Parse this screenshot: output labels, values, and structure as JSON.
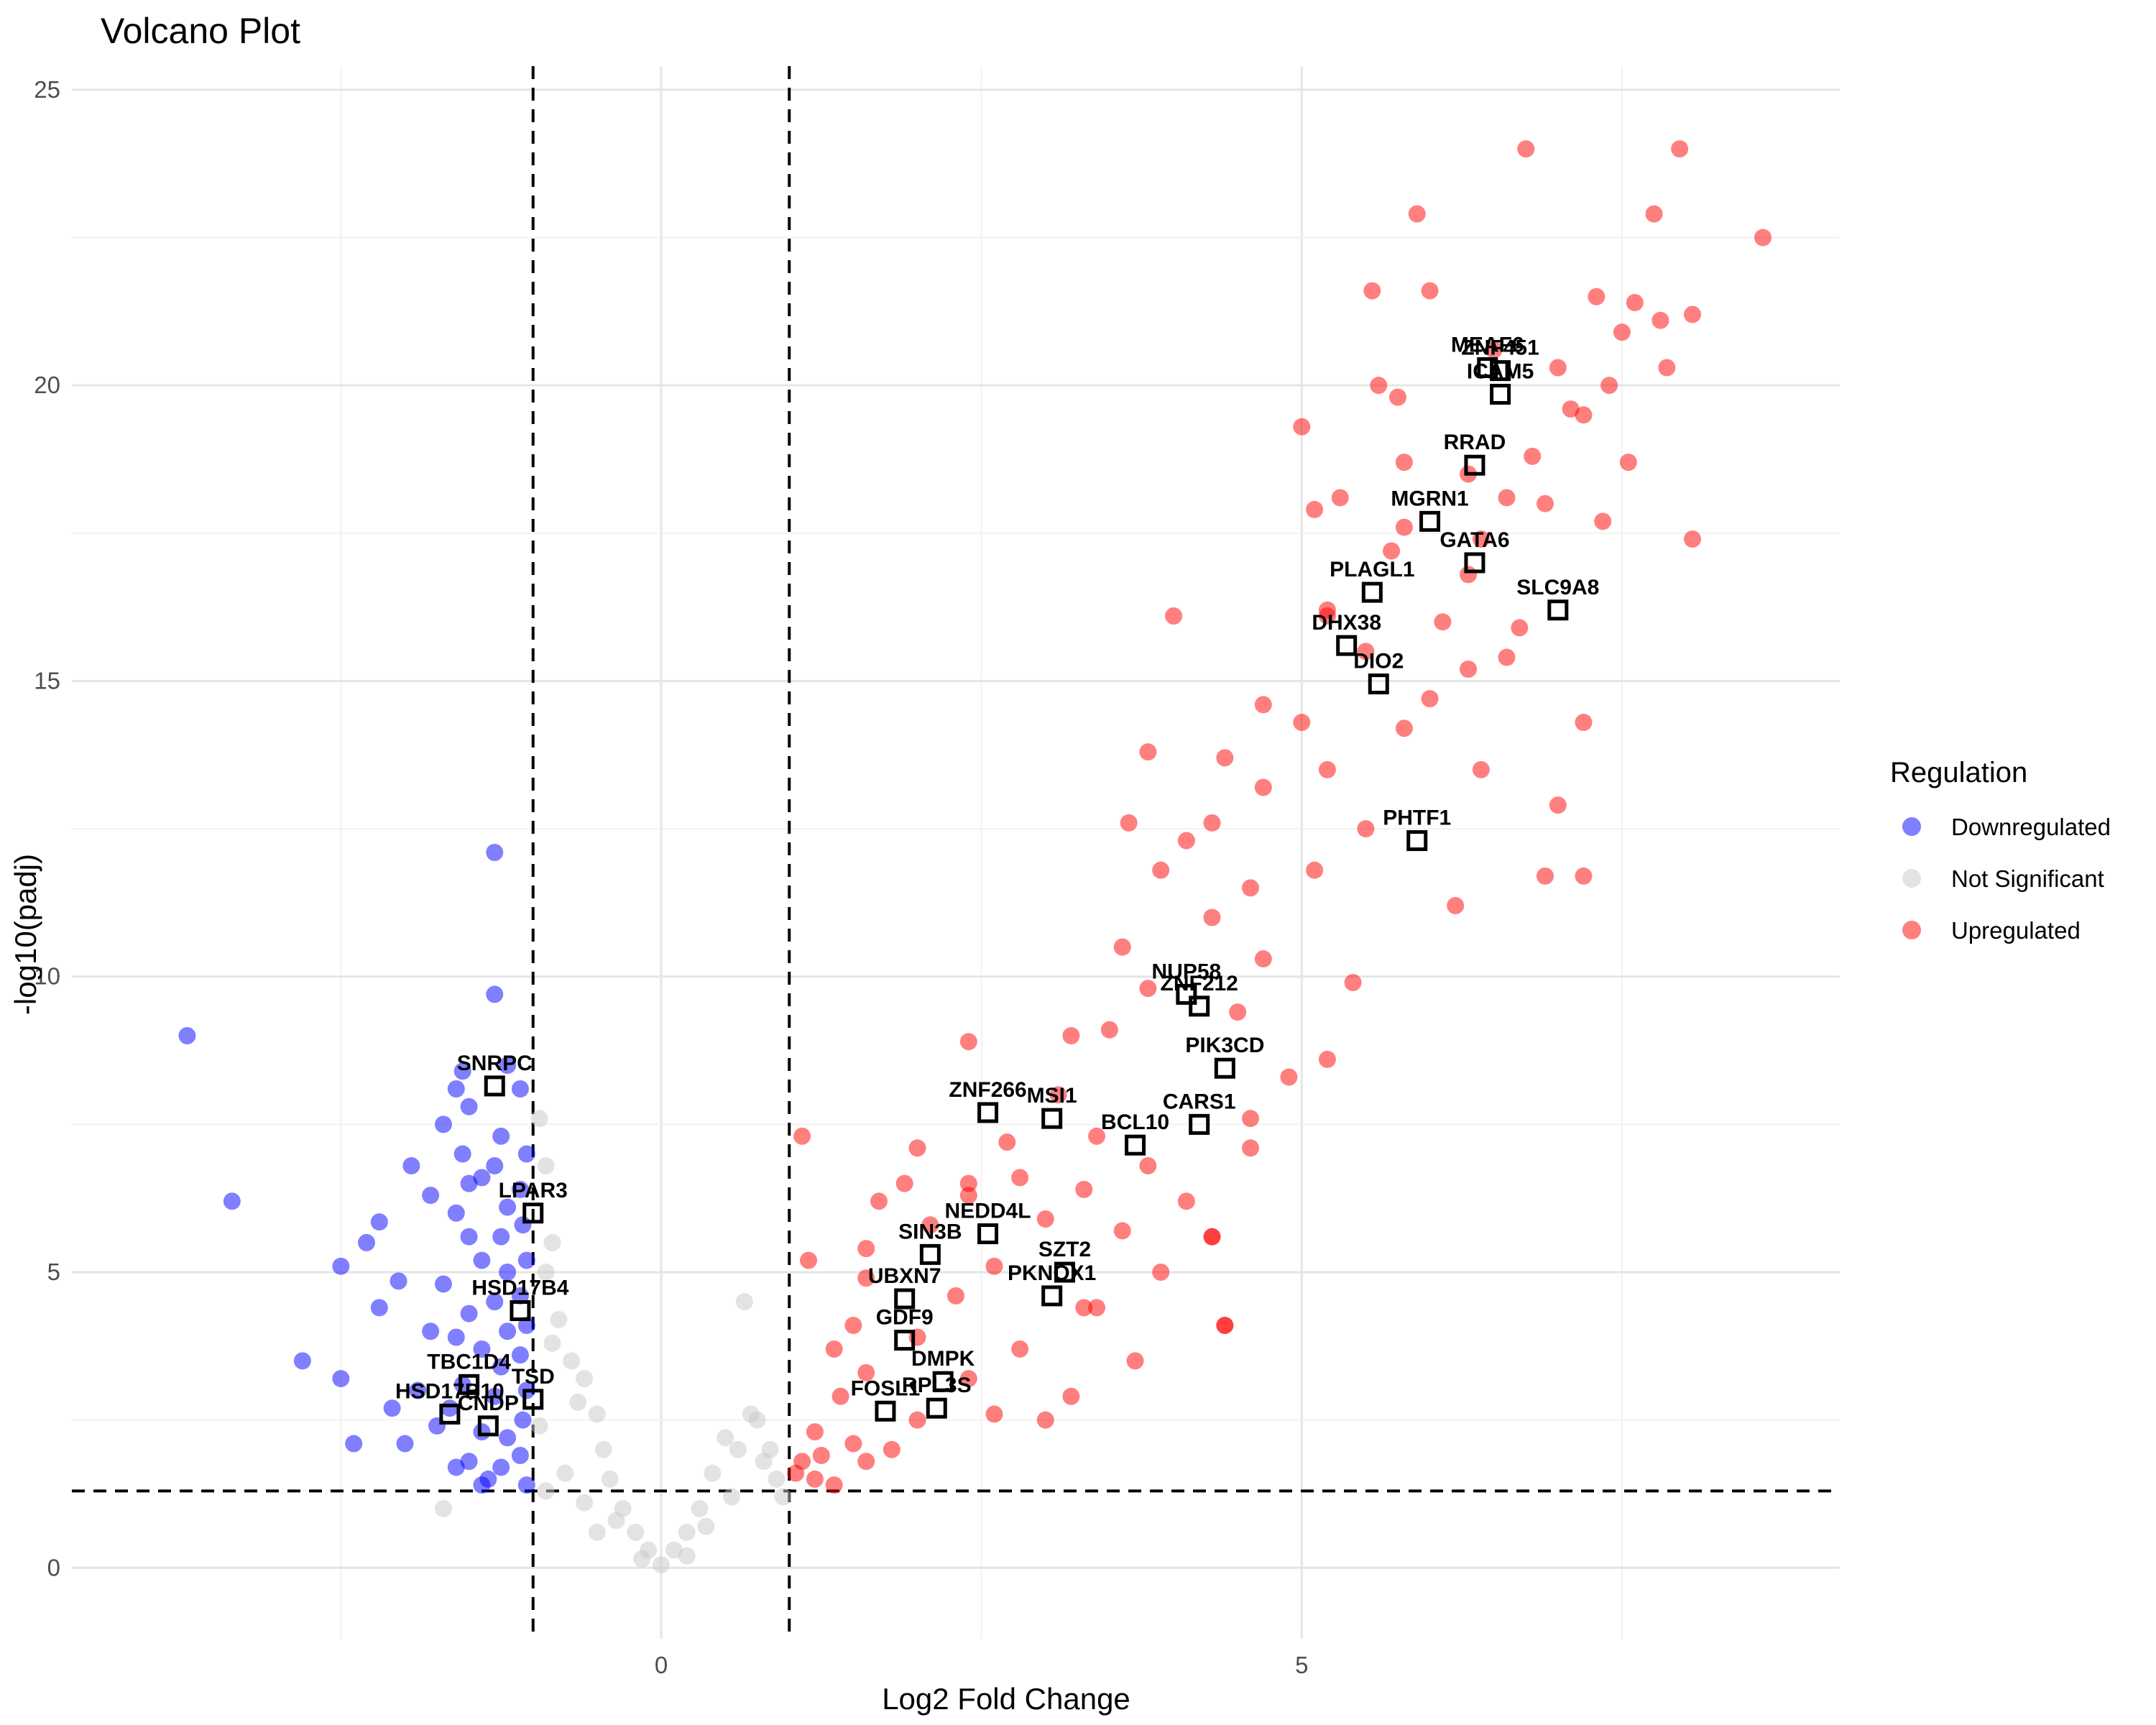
{
  "chart_data": {
    "type": "scatter",
    "title": "Volcano Plot",
    "xlabel": "Log2 Fold Change",
    "ylabel": "-log10(padj)",
    "xlim": [
      -4.6,
      9.2
    ],
    "ylim": [
      -1.2,
      25.4
    ],
    "x_ticks": [
      0,
      5
    ],
    "y_ticks": [
      0,
      5,
      10,
      15,
      20,
      25
    ],
    "grid": true,
    "legend_position": "right",
    "thresholds": {
      "log2fc": [
        -1,
        1
      ],
      "neg_log10_padj": 1.3
    },
    "legend": {
      "title": "Regulation"
    },
    "series": [
      {
        "name": "Downregulated",
        "color": "#0000ff",
        "points": [
          [
            -3.7,
            9.0
          ],
          [
            -3.35,
            6.2
          ],
          [
            -2.5,
            5.1
          ],
          [
            -2.05,
            4.85
          ],
          [
            -2.2,
            5.85
          ],
          [
            -2.3,
            5.5
          ],
          [
            -2.2,
            4.4
          ],
          [
            -2.8,
            3.5
          ],
          [
            -2.5,
            3.2
          ],
          [
            -2.4,
            2.1
          ],
          [
            -2.1,
            2.7
          ],
          [
            -2.0,
            2.1
          ],
          [
            -1.6,
            8.1
          ],
          [
            -1.5,
            7.8
          ],
          [
            -1.55,
            8.4
          ],
          [
            -1.55,
            7.0
          ],
          [
            -1.7,
            7.5
          ],
          [
            -1.5,
            6.5
          ],
          [
            -1.4,
            6.6
          ],
          [
            -1.6,
            6.0
          ],
          [
            -1.5,
            5.6
          ],
          [
            -1.4,
            5.2
          ],
          [
            -1.5,
            4.3
          ],
          [
            -1.6,
            3.9
          ],
          [
            -1.4,
            3.7
          ],
          [
            -1.55,
            3.1
          ],
          [
            -1.65,
            2.7
          ],
          [
            -1.4,
            2.3
          ],
          [
            -1.5,
            1.8
          ],
          [
            -1.35,
            1.5
          ],
          [
            -1.3,
            9.7
          ],
          [
            -1.2,
            8.5
          ],
          [
            -1.25,
            7.3
          ],
          [
            -1.3,
            6.8
          ],
          [
            -1.2,
            6.1
          ],
          [
            -1.25,
            5.6
          ],
          [
            -1.2,
            5.0
          ],
          [
            -1.3,
            4.5
          ],
          [
            -1.2,
            4.0
          ],
          [
            -1.25,
            3.4
          ],
          [
            -1.3,
            2.9
          ],
          [
            -1.2,
            2.2
          ],
          [
            -1.25,
            1.7
          ],
          [
            -1.1,
            8.1
          ],
          [
            -1.05,
            7.0
          ],
          [
            -1.1,
            6.4
          ],
          [
            -1.08,
            5.8
          ],
          [
            -1.05,
            5.2
          ],
          [
            -1.1,
            4.6
          ],
          [
            -1.05,
            4.1
          ],
          [
            -1.1,
            3.6
          ],
          [
            -1.05,
            3.0
          ],
          [
            -1.08,
            2.5
          ],
          [
            -1.1,
            1.9
          ],
          [
            -1.05,
            1.4
          ],
          [
            -1.4,
            1.4
          ],
          [
            -1.6,
            1.7
          ],
          [
            -1.75,
            2.4
          ],
          [
            -1.9,
            3.0
          ],
          [
            -1.8,
            4.0
          ],
          [
            -1.7,
            4.8
          ],
          [
            -1.8,
            6.3
          ],
          [
            -1.95,
            6.8
          ],
          [
            -1.3,
            12.1
          ]
        ]
      },
      {
        "name": "Not Significant",
        "color": "#c8c8c8",
        "points": [
          [
            -1.7,
            1.0
          ],
          [
            -0.95,
            7.6
          ],
          [
            -0.9,
            6.8
          ],
          [
            -0.85,
            5.5
          ],
          [
            -0.9,
            5.0
          ],
          [
            -0.8,
            4.2
          ],
          [
            -0.7,
            3.5
          ],
          [
            -0.6,
            3.2
          ],
          [
            -0.5,
            2.6
          ],
          [
            -0.45,
            2.0
          ],
          [
            -0.4,
            1.5
          ],
          [
            -0.3,
            1.0
          ],
          [
            -0.2,
            0.6
          ],
          [
            -0.1,
            0.3
          ],
          [
            0.0,
            0.05
          ],
          [
            0.1,
            0.3
          ],
          [
            0.2,
            0.6
          ],
          [
            0.3,
            1.0
          ],
          [
            0.4,
            1.6
          ],
          [
            0.5,
            2.2
          ],
          [
            0.6,
            2.0
          ],
          [
            0.7,
            2.6
          ],
          [
            0.75,
            2.5
          ],
          [
            0.8,
            1.8
          ],
          [
            0.9,
            1.5
          ],
          [
            0.95,
            1.2
          ],
          [
            0.65,
            4.5
          ],
          [
            -0.85,
            3.8
          ],
          [
            -0.95,
            2.4
          ],
          [
            -0.75,
            1.6
          ],
          [
            -0.6,
            1.1
          ],
          [
            -0.35,
            0.8
          ],
          [
            0.35,
            0.7
          ],
          [
            0.55,
            1.2
          ],
          [
            0.85,
            2.0
          ],
          [
            -0.65,
            2.8
          ],
          [
            -0.9,
            1.3
          ],
          [
            -0.5,
            0.6
          ],
          [
            0.2,
            0.2
          ],
          [
            -0.15,
            0.15
          ]
        ]
      },
      {
        "name": "Upregulated",
        "color": "#ff0000",
        "points": [
          [
            6.75,
            24.0
          ],
          [
            7.95,
            24.0
          ],
          [
            5.9,
            22.9
          ],
          [
            7.75,
            22.9
          ],
          [
            8.6,
            22.5
          ],
          [
            7.3,
            21.5
          ],
          [
            5.55,
            21.6
          ],
          [
            6.0,
            21.6
          ],
          [
            7.6,
            21.4
          ],
          [
            7.8,
            21.1
          ],
          [
            8.05,
            21.2
          ],
          [
            7.5,
            20.9
          ],
          [
            7.0,
            20.3
          ],
          [
            7.85,
            20.3
          ],
          [
            7.4,
            20.0
          ],
          [
            6.5,
            20.6
          ],
          [
            5.6,
            20.0
          ],
          [
            5.75,
            19.8
          ],
          [
            7.2,
            19.5
          ],
          [
            5.0,
            19.3
          ],
          [
            7.55,
            18.7
          ],
          [
            5.8,
            18.7
          ],
          [
            6.8,
            18.8
          ],
          [
            6.3,
            18.5
          ],
          [
            5.3,
            18.1
          ],
          [
            6.6,
            18.1
          ],
          [
            6.9,
            18.0
          ],
          [
            7.35,
            17.7
          ],
          [
            5.1,
            17.9
          ],
          [
            8.05,
            17.4
          ],
          [
            6.4,
            17.4
          ],
          [
            5.7,
            17.2
          ],
          [
            4.0,
            16.1
          ],
          [
            5.2,
            16.2
          ],
          [
            6.1,
            16.0
          ],
          [
            6.7,
            15.9
          ],
          [
            5.5,
            15.5
          ],
          [
            6.3,
            15.2
          ],
          [
            6.6,
            15.4
          ],
          [
            6.0,
            14.7
          ],
          [
            5.8,
            14.2
          ],
          [
            4.7,
            14.6
          ],
          [
            7.2,
            14.3
          ],
          [
            5.0,
            14.3
          ],
          [
            4.4,
            13.7
          ],
          [
            3.8,
            13.8
          ],
          [
            6.4,
            13.5
          ],
          [
            5.2,
            13.5
          ],
          [
            4.7,
            13.2
          ],
          [
            3.65,
            12.6
          ],
          [
            4.3,
            12.6
          ],
          [
            7.0,
            12.9
          ],
          [
            5.5,
            12.5
          ],
          [
            4.1,
            12.3
          ],
          [
            4.6,
            11.5
          ],
          [
            3.9,
            11.8
          ],
          [
            5.1,
            11.8
          ],
          [
            6.2,
            11.2
          ],
          [
            7.2,
            11.7
          ],
          [
            4.3,
            11.0
          ],
          [
            3.6,
            10.5
          ],
          [
            4.7,
            10.3
          ],
          [
            3.8,
            9.8
          ],
          [
            5.4,
            9.9
          ],
          [
            4.5,
            9.4
          ],
          [
            3.5,
            9.1
          ],
          [
            3.2,
            9.0
          ],
          [
            2.4,
            8.9
          ],
          [
            4.9,
            8.3
          ],
          [
            5.2,
            8.6
          ],
          [
            3.1,
            8.0
          ],
          [
            4.6,
            7.6
          ],
          [
            3.4,
            7.3
          ],
          [
            2.7,
            7.2
          ],
          [
            2.0,
            7.1
          ],
          [
            3.8,
            6.8
          ],
          [
            4.6,
            7.1
          ],
          [
            1.9,
            6.5
          ],
          [
            2.4,
            6.3
          ],
          [
            2.8,
            6.6
          ],
          [
            3.3,
            6.4
          ],
          [
            4.1,
            6.2
          ],
          [
            1.7,
            6.2
          ],
          [
            3.0,
            5.9
          ],
          [
            2.1,
            5.8
          ],
          [
            3.6,
            5.7
          ],
          [
            4.3,
            5.6
          ],
          [
            1.6,
            5.4
          ],
          [
            2.6,
            5.1
          ],
          [
            3.9,
            5.0
          ],
          [
            1.15,
            5.2
          ],
          [
            1.6,
            4.9
          ],
          [
            2.3,
            4.6
          ],
          [
            3.3,
            4.4
          ],
          [
            4.4,
            4.1
          ],
          [
            1.5,
            4.1
          ],
          [
            2.0,
            3.9
          ],
          [
            2.8,
            3.7
          ],
          [
            3.7,
            3.5
          ],
          [
            1.35,
            3.7
          ],
          [
            1.6,
            3.3
          ],
          [
            2.4,
            3.2
          ],
          [
            3.2,
            2.9
          ],
          [
            1.4,
            2.9
          ],
          [
            2.0,
            2.5
          ],
          [
            2.6,
            2.6
          ],
          [
            3.0,
            2.5
          ],
          [
            1.2,
            2.3
          ],
          [
            1.5,
            2.1
          ],
          [
            1.25,
            1.9
          ],
          [
            1.1,
            1.8
          ],
          [
            1.05,
            1.6
          ],
          [
            1.2,
            1.5
          ],
          [
            1.35,
            1.4
          ],
          [
            1.6,
            1.8
          ],
          [
            1.8,
            2.0
          ],
          [
            1.1,
            7.3
          ],
          [
            7.1,
            19.6
          ],
          [
            6.9,
            11.7
          ],
          [
            4.3,
            5.6
          ],
          [
            3.4,
            4.4
          ],
          [
            4.4,
            4.1
          ],
          [
            2.4,
            6.5
          ],
          [
            5.2,
            16.1
          ],
          [
            6.3,
            16.8
          ],
          [
            5.8,
            17.6
          ]
        ]
      }
    ],
    "labeled_genes": [
      {
        "label": "ZNF451",
        "x": 6.55,
        "y": 20.25
      },
      {
        "label": "MEAF6",
        "x": 6.45,
        "y": 20.3
      },
      {
        "label": "ICAM5",
        "x": 6.55,
        "y": 19.85
      },
      {
        "label": "RRAD",
        "x": 6.35,
        "y": 18.65
      },
      {
        "label": "MGRN1",
        "x": 6.0,
        "y": 17.7
      },
      {
        "label": "GATA6",
        "x": 6.35,
        "y": 17.0
      },
      {
        "label": "PLAGL1",
        "x": 5.55,
        "y": 16.5
      },
      {
        "label": "SLC9A8",
        "x": 7.0,
        "y": 16.2
      },
      {
        "label": "DHX38",
        "x": 5.35,
        "y": 15.6
      },
      {
        "label": "DIO2",
        "x": 5.6,
        "y": 14.95
      },
      {
        "label": "PHTF1",
        "x": 5.9,
        "y": 12.3
      },
      {
        "label": "NUP58",
        "x": 4.1,
        "y": 9.7
      },
      {
        "label": "ZNF212",
        "x": 4.2,
        "y": 9.5
      },
      {
        "label": "PIK3CD",
        "x": 4.4,
        "y": 8.45
      },
      {
        "label": "ZNF266",
        "x": 2.55,
        "y": 7.7
      },
      {
        "label": "MSI1",
        "x": 3.05,
        "y": 7.6
      },
      {
        "label": "CARS1",
        "x": 4.2,
        "y": 7.5
      },
      {
        "label": "BCL10",
        "x": 3.7,
        "y": 7.15
      },
      {
        "label": "NEDD4L",
        "x": 2.55,
        "y": 5.65
      },
      {
        "label": "SIN3B",
        "x": 2.1,
        "y": 5.3
      },
      {
        "label": "SZT2",
        "x": 3.15,
        "y": 5.0
      },
      {
        "label": "UBXN7",
        "x": 1.9,
        "y": 4.55
      },
      {
        "label": "PKNOX1",
        "x": 3.05,
        "y": 4.6
      },
      {
        "label": "GDF9",
        "x": 1.9,
        "y": 3.85
      },
      {
        "label": "DMPK",
        "x": 2.2,
        "y": 3.15
      },
      {
        "label": "RPL3S",
        "x": 2.15,
        "y": 2.7
      },
      {
        "label": "FOSL1",
        "x": 1.75,
        "y": 2.65
      },
      {
        "label": "SNRPC",
        "x": -1.3,
        "y": 8.15
      },
      {
        "label": "LPAR3",
        "x": -1.0,
        "y": 6.0
      },
      {
        "label": "HSD17B4",
        "x": -1.1,
        "y": 4.35
      },
      {
        "label": "TBC1D4",
        "x": -1.5,
        "y": 3.1
      },
      {
        "label": "TSD",
        "x": -1.0,
        "y": 2.85
      },
      {
        "label": "HSD17B10",
        "x": -1.65,
        "y": 2.6
      },
      {
        "label": "CNDP",
        "x": -1.35,
        "y": 2.4
      }
    ]
  }
}
